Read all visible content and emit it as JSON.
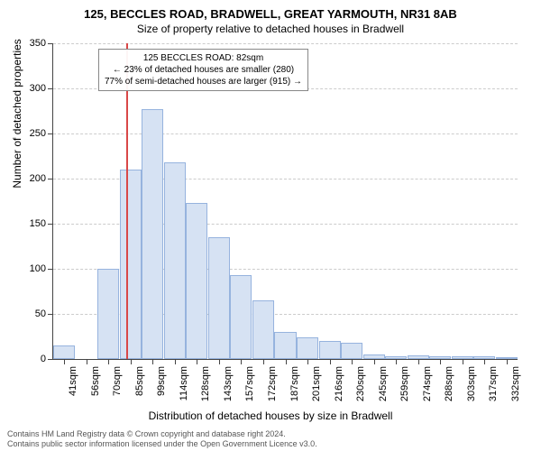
{
  "title": "125, BECCLES ROAD, BRADWELL, GREAT YARMOUTH, NR31 8AB",
  "subtitle": "Size of property relative to detached houses in Bradwell",
  "y_axis_title": "Number of detached properties",
  "x_axis_title": "Distribution of detached houses by size in Bradwell",
  "chart": {
    "type": "bar",
    "ylim": [
      0,
      350
    ],
    "ytick_step": 50,
    "bar_fill": "#d6e2f3",
    "bar_border": "#96b3de",
    "grid_color": "#cccccc",
    "reference_line_x": 82,
    "reference_line_color": "#d94848",
    "x_labels": [
      "41sqm",
      "56sqm",
      "70sqm",
      "85sqm",
      "99sqm",
      "114sqm",
      "128sqm",
      "143sqm",
      "157sqm",
      "172sqm",
      "187sqm",
      "201sqm",
      "216sqm",
      "230sqm",
      "245sqm",
      "259sqm",
      "274sqm",
      "288sqm",
      "303sqm",
      "317sqm",
      "332sqm"
    ],
    "values": [
      15,
      0,
      100,
      210,
      277,
      218,
      173,
      135,
      93,
      65,
      30,
      24,
      20,
      18,
      5,
      3,
      4,
      3,
      3,
      3,
      2
    ]
  },
  "annotation": {
    "line1": "125 BECCLES ROAD: 82sqm",
    "line2": "← 23% of detached houses are smaller (280)",
    "line3": "77% of semi-detached houses are larger (915) →"
  },
  "footer": {
    "line1": "Contains HM Land Registry data © Crown copyright and database right 2024.",
    "line2": "Contains public sector information licensed under the Open Government Licence v3.0."
  }
}
